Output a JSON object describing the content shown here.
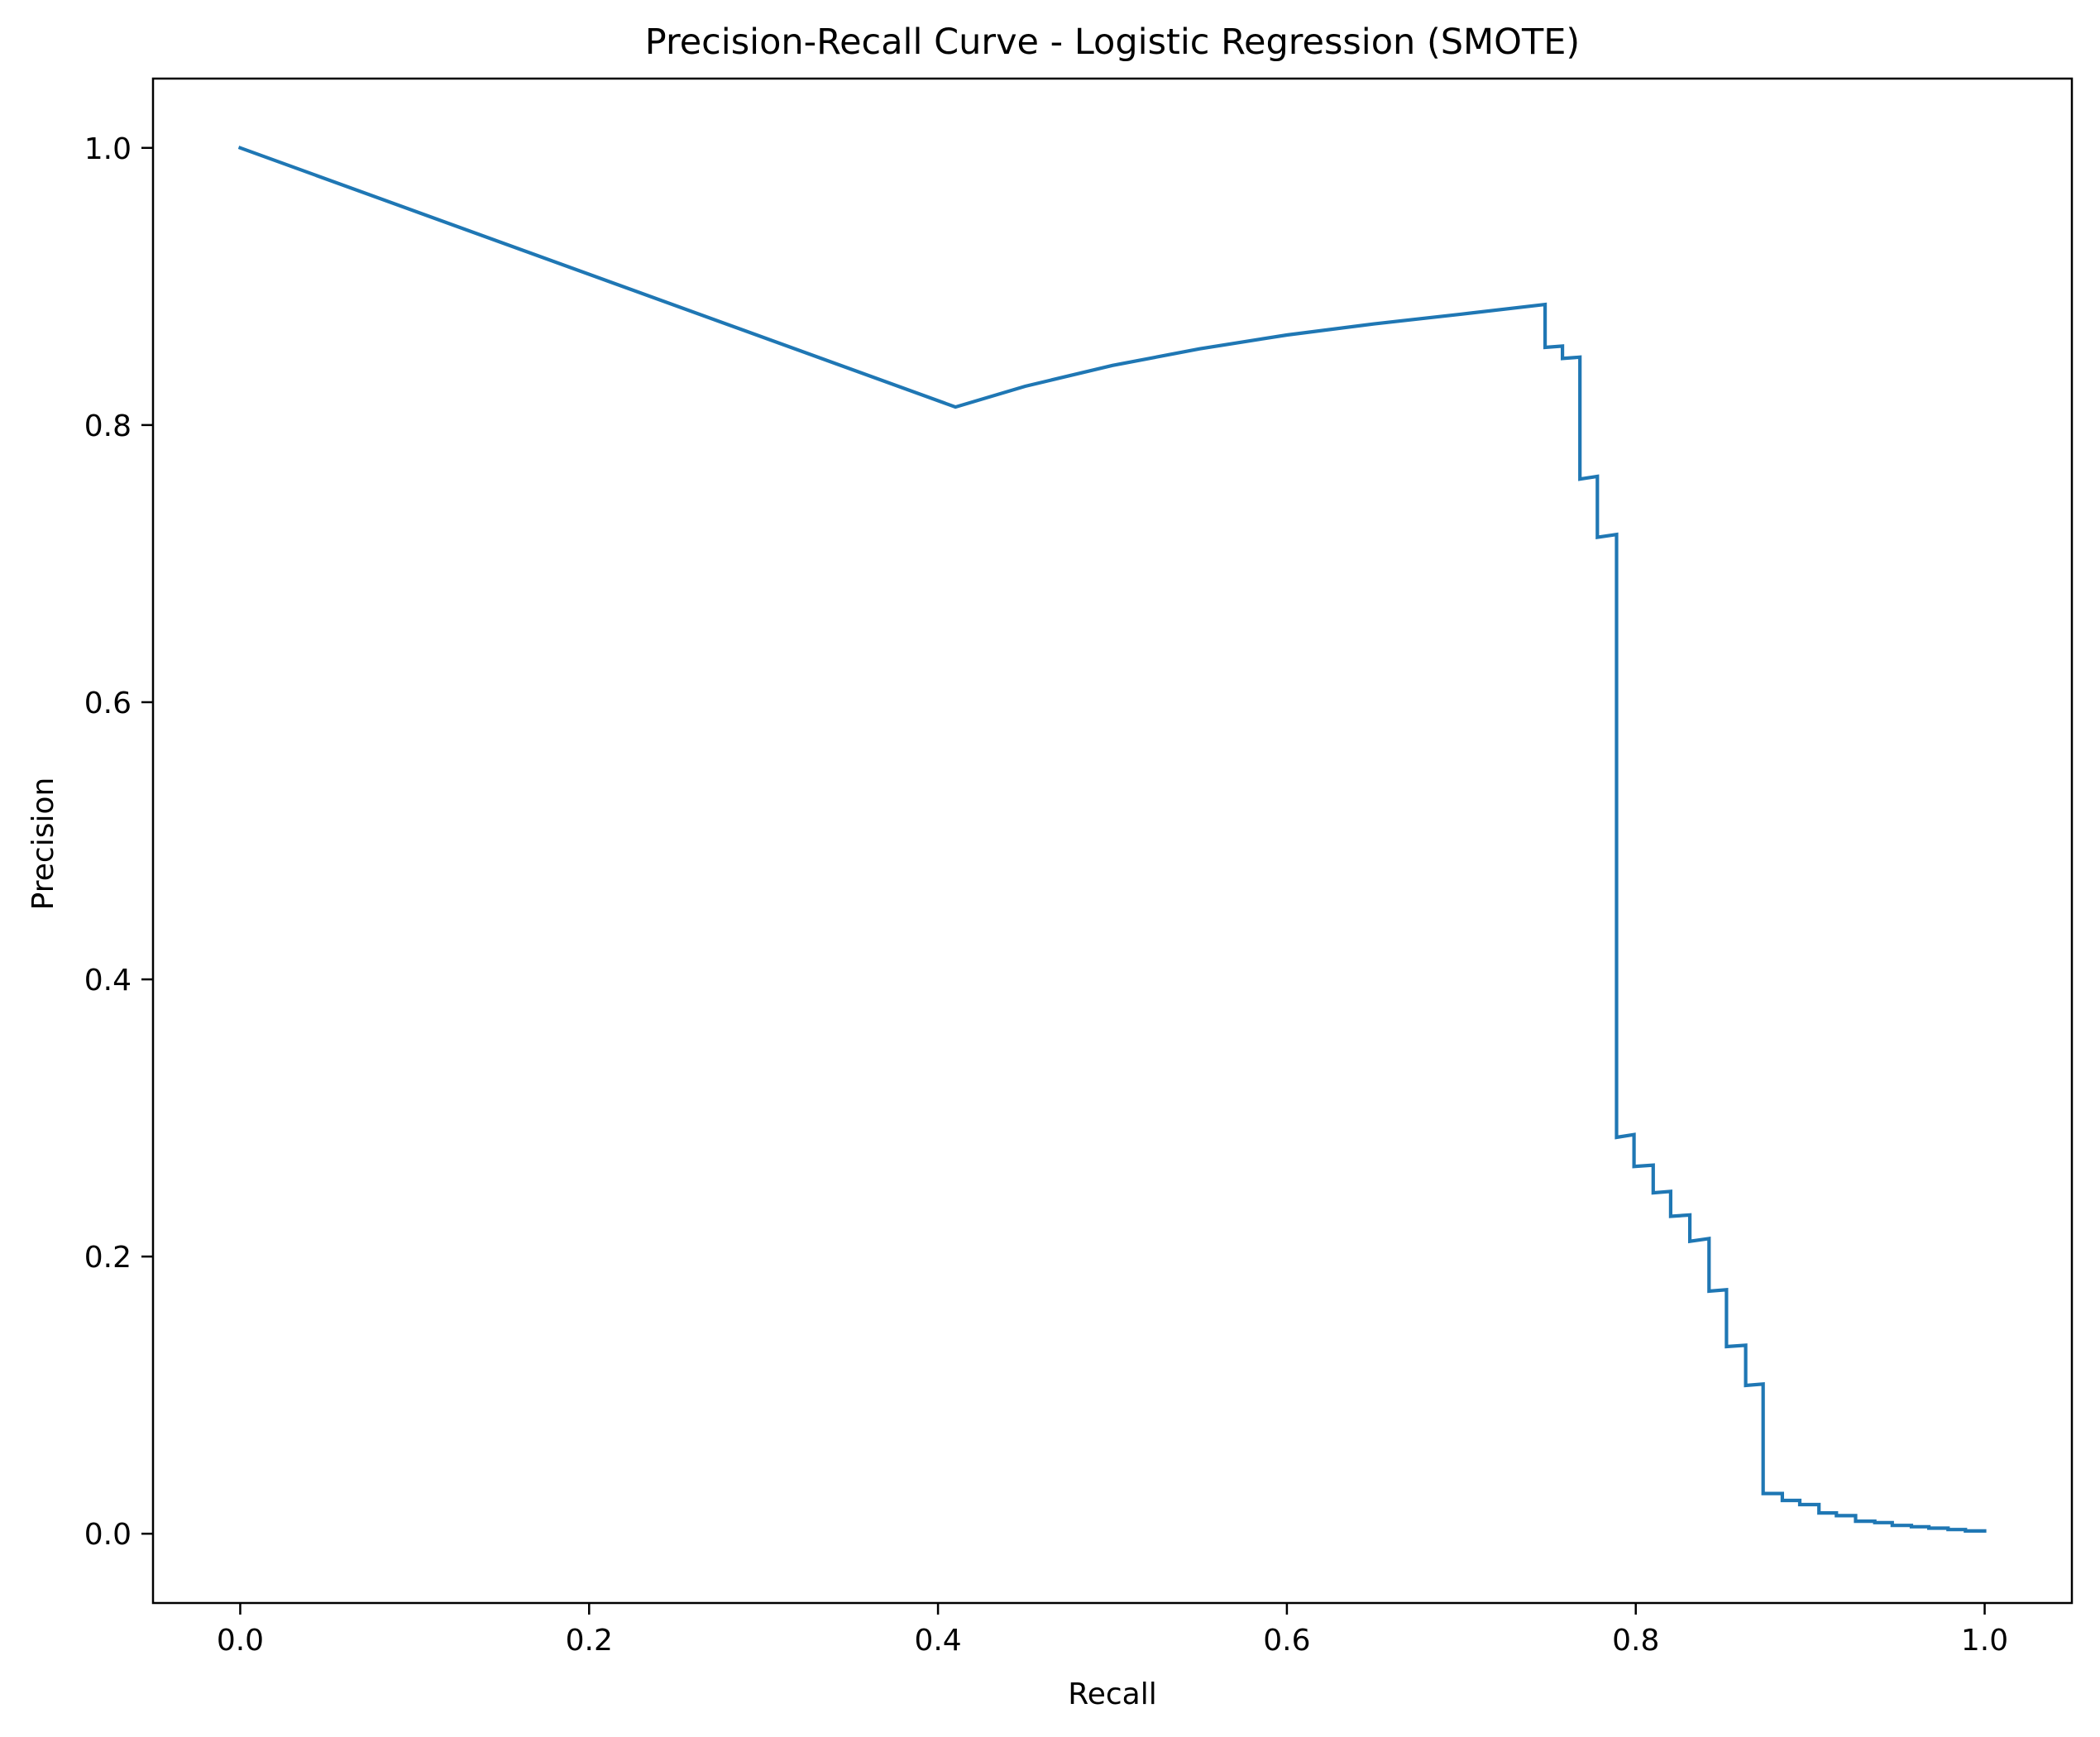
{
  "chart_data": {
    "type": "line",
    "title": "Precision-Recall Curve - Logistic Regression (SMOTE)",
    "xlabel": "Recall",
    "ylabel": "Precision",
    "xlim": [
      -0.05,
      1.05
    ],
    "ylim": [
      -0.05,
      1.05
    ],
    "x_ticks": [
      0.0,
      0.2,
      0.4,
      0.6,
      0.8,
      1.0
    ],
    "x_tick_labels": [
      "0.0",
      "0.2",
      "0.4",
      "0.6",
      "0.8",
      "1.0"
    ],
    "y_ticks": [
      0.0,
      0.2,
      0.4,
      0.6,
      0.8,
      1.0
    ],
    "y_tick_labels": [
      "0.0",
      "0.2",
      "0.4",
      "0.6",
      "0.8",
      "1.0"
    ],
    "grid": false,
    "legend": false,
    "line_color": "#1f77b4",
    "series": [
      {
        "x": [
          0.0,
          0.41,
          0.45,
          0.5,
          0.55,
          0.6,
          0.65,
          0.7,
          0.748,
          0.748,
          0.758,
          0.758,
          0.768,
          0.768,
          0.778,
          0.778,
          0.789,
          0.789,
          0.799,
          0.799,
          0.81,
          0.81,
          0.82,
          0.82,
          0.831,
          0.831,
          0.842,
          0.842,
          0.852,
          0.852,
          0.863,
          0.863,
          0.873,
          0.873,
          0.884,
          0.884,
          0.894,
          0.894,
          0.905,
          0.905,
          0.915,
          0.915,
          0.926,
          0.926,
          0.937,
          0.937,
          0.947,
          0.947,
          0.958,
          0.958,
          0.968,
          0.968,
          0.979,
          0.979,
          0.989,
          0.989,
          1.0
        ],
        "y": [
          1.0,
          0.813,
          0.828,
          0.843,
          0.855,
          0.865,
          0.873,
          0.88,
          0.887,
          0.856,
          0.857,
          0.848,
          0.849,
          0.761,
          0.763,
          0.719,
          0.721,
          0.286,
          0.288,
          0.265,
          0.266,
          0.246,
          0.247,
          0.229,
          0.23,
          0.211,
          0.213,
          0.175,
          0.176,
          0.135,
          0.136,
          0.107,
          0.108,
          0.029,
          0.029,
          0.024,
          0.024,
          0.021,
          0.021,
          0.015,
          0.015,
          0.013,
          0.013,
          0.009,
          0.009,
          0.008,
          0.008,
          0.006,
          0.006,
          0.005,
          0.005,
          0.004,
          0.004,
          0.003,
          0.003,
          0.002,
          0.002
        ]
      }
    ]
  }
}
